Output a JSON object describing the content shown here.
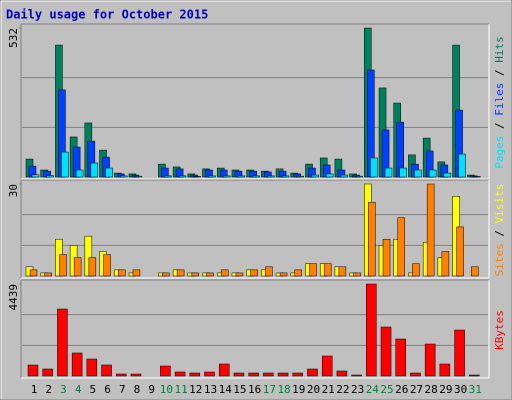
{
  "title": "Daily usage for October 2015",
  "categories": [
    "1",
    "2",
    "3",
    "4",
    "5",
    "6",
    "7",
    "8",
    "9",
    "10",
    "11",
    "12",
    "13",
    "14",
    "15",
    "16",
    "17",
    "18",
    "19",
    "20",
    "21",
    "22",
    "23",
    "24",
    "25",
    "26",
    "27",
    "28",
    "29",
    "30",
    "31"
  ],
  "category_colors": [
    "#000000",
    "#000000",
    "#008040",
    "#008040",
    "#000000",
    "#000000",
    "#000000",
    "#000000",
    "#000000",
    "#008040",
    "#008040",
    "#000000",
    "#000000",
    "#000000",
    "#000000",
    "#000000",
    "#008040",
    "#008040",
    "#000000",
    "#000000",
    "#000000",
    "#000000",
    "#000000",
    "#008040",
    "#008040",
    "#000000",
    "#000000",
    "#000000",
    "#000000",
    "#000000",
    "#008040"
  ],
  "legend_separator": " / ",
  "chart_data": [
    {
      "type": "bar",
      "ylim": [
        0,
        532
      ],
      "yticks": [
        532
      ],
      "grid": true,
      "series": [
        {
          "name": "Hits",
          "color": "#00805c",
          "values": [
            64,
            25,
            471,
            143,
            193,
            96,
            14,
            11,
            0,
            46,
            36,
            11,
            29,
            32,
            25,
            25,
            21,
            29,
            14,
            46,
            68,
            64,
            11,
            532,
            318,
            264,
            79,
            139,
            54,
            471,
            7
          ]
        },
        {
          "name": "Files",
          "color": "#0040ff",
          "values": [
            39,
            21,
            311,
            107,
            128,
            71,
            11,
            7,
            0,
            32,
            29,
            7,
            25,
            25,
            21,
            21,
            18,
            21,
            11,
            32,
            43,
            25,
            7,
            382,
            168,
            196,
            46,
            93,
            43,
            239,
            4
          ]
        },
        {
          "name": "Pages",
          "color": "#00e0ff",
          "values": [
            8,
            5,
            89,
            25,
            50,
            32,
            4,
            3,
            0,
            4,
            4,
            2,
            4,
            4,
            4,
            4,
            4,
            4,
            3,
            7,
            11,
            7,
            3,
            68,
            32,
            32,
            25,
            25,
            14,
            82,
            2
          ]
        }
      ]
    },
    {
      "type": "bar",
      "ylim": [
        0,
        30
      ],
      "yticks": [
        30
      ],
      "grid": true,
      "series": [
        {
          "name": "Visits",
          "color": "#ffff00",
          "values": [
            3,
            1,
            12,
            10,
            13,
            8,
            2,
            1,
            0,
            1,
            2,
            1,
            1,
            1,
            1,
            2,
            2,
            1,
            1,
            4,
            4,
            3,
            1,
            30,
            10,
            12,
            1,
            11,
            6,
            26,
            0
          ]
        },
        {
          "name": "Sites",
          "color": "#ff8000",
          "values": [
            2,
            1,
            7,
            6,
            6,
            7,
            2,
            2,
            0,
            1,
            2,
            1,
            1,
            2,
            1,
            2,
            3,
            1,
            2,
            4,
            4,
            3,
            1,
            24,
            12,
            19,
            4,
            30,
            8,
            16,
            3
          ]
        }
      ]
    },
    {
      "type": "bar",
      "ylim": [
        0,
        4439
      ],
      "yticks": [
        4439
      ],
      "grid": true,
      "series": [
        {
          "name": "KBytes",
          "color": "#ff0000",
          "values": [
            531,
            338,
            3233,
            1110,
            820,
            531,
            97,
            97,
            0,
            483,
            193,
            145,
            193,
            579,
            145,
            145,
            145,
            145,
            145,
            338,
            965,
            241,
            48,
            4439,
            2364,
            1785,
            145,
            1544,
            579,
            2219,
            48
          ]
        }
      ]
    }
  ]
}
